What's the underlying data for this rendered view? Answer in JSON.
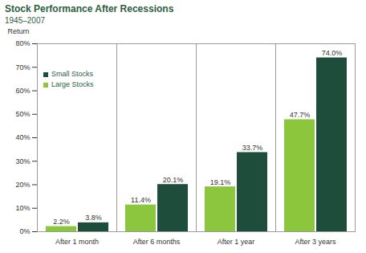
{
  "chart_data": {
    "type": "bar",
    "title": "Stock Performance After Recessions",
    "subtitle": "1945–2007",
    "y_label": "Return",
    "categories": [
      "After 1 month",
      "After 6 months",
      "After 1 year",
      "After 3 years"
    ],
    "series": [
      {
        "name": "Large Stocks",
        "color": "#8cc63f",
        "values": [
          2.2,
          11.4,
          19.1,
          47.7
        ],
        "value_labels": [
          "2.2%",
          "11.4%",
          "19.1%",
          "47.7%"
        ]
      },
      {
        "name": "Small Stocks",
        "color": "#1e4d3b",
        "values": [
          3.8,
          20.1,
          33.7,
          74.0
        ],
        "value_labels": [
          "3.8%",
          "20.1%",
          "33.7%",
          "74.0%"
        ]
      }
    ],
    "ylim": [
      0,
      80
    ],
    "yticks": [
      {
        "value": 0,
        "label": "0%"
      },
      {
        "value": 10,
        "label": "10%"
      },
      {
        "value": 20,
        "label": "20%"
      },
      {
        "value": 30,
        "label": "30%"
      },
      {
        "value": 40,
        "label": "40%"
      },
      {
        "value": 50,
        "label": "50%"
      },
      {
        "value": 60,
        "label": "60%"
      },
      {
        "value": 70,
        "label": "70%"
      },
      {
        "value": 80,
        "label": "80%"
      }
    ],
    "grid": false,
    "legend": "top-left",
    "data_labels": true
  }
}
